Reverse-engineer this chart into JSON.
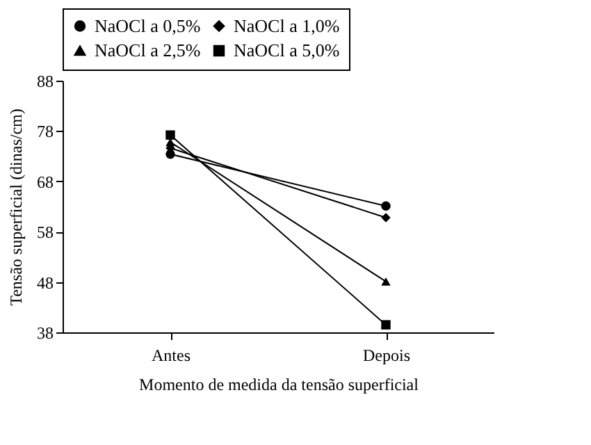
{
  "chart_data": {
    "type": "line",
    "xlabel": "Momento de medida da tensão superficial",
    "ylabel": "Tensão superficial (dinas/cm)",
    "categories": [
      "Antes",
      "Depois"
    ],
    "series": [
      {
        "name": "NaOCl a 0,5%",
        "color": "#000000",
        "marker": "circle",
        "values": [
          73.4,
          63.1
        ]
      },
      {
        "name": "NaOCl a 1,0%",
        "color": "#000000",
        "marker": "diamond",
        "values": [
          74.6,
          60.8
        ]
      },
      {
        "name": "NaOCl a 2,5%",
        "color": "#000000",
        "marker": "triangle",
        "values": [
          75.8,
          48.1
        ]
      },
      {
        "name": "NaOCl a 5,0%",
        "color": "#000000",
        "marker": "square",
        "values": [
          77.2,
          39.5
        ]
      }
    ],
    "ylim": [
      38,
      88
    ],
    "yticks": [
      38,
      48,
      58,
      68,
      78,
      88
    ],
    "grid": false,
    "legend": "top"
  }
}
